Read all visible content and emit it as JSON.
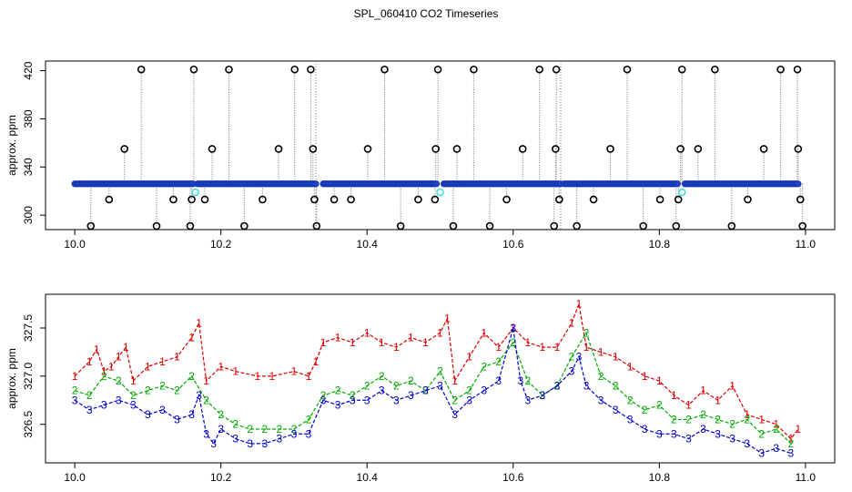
{
  "page": {
    "title": "SPL_060410  CO2 Timeseries"
  },
  "colors": {
    "series1": "#dd0000",
    "series2": "#00aa00",
    "series3": "#0000cc",
    "cyan": "#44dddd",
    "point_fill": "#2244cc",
    "outlier": "#000000",
    "vline": "#777777"
  },
  "chart_data": [
    {
      "type": "scatter",
      "title": "SPL_060410  CO2 Timeseries",
      "xlabel": "",
      "ylabel": "approx. ppm",
      "xlim": [
        9.96,
        11.04
      ],
      "ylim": [
        288,
        428
      ],
      "xticks": [
        10.0,
        10.2,
        10.4,
        10.6,
        10.8,
        11.0
      ],
      "yticks": [
        300,
        340,
        380,
        420
      ],
      "grid": false,
      "gap_x": [
        10.33,
        10.665
      ],
      "baseline_segments": [
        {
          "x_start": 10.0,
          "x_end": 10.162,
          "y": 326
        },
        {
          "x_start": 10.168,
          "x_end": 10.33,
          "y": 326
        },
        {
          "x_start": 10.34,
          "x_end": 10.495,
          "y": 326
        },
        {
          "x_start": 10.505,
          "x_end": 10.665,
          "y": 326
        },
        {
          "x_start": 10.67,
          "x_end": 10.825,
          "y": 326
        },
        {
          "x_start": 10.835,
          "x_end": 10.99,
          "y": 326
        }
      ],
      "outliers": [
        {
          "x": 10.022,
          "y": 291
        },
        {
          "x": 10.047,
          "y": 313
        },
        {
          "x": 10.068,
          "y": 355
        },
        {
          "x": 10.091,
          "y": 421
        },
        {
          "x": 10.112,
          "y": 291
        },
        {
          "x": 10.135,
          "y": 313
        },
        {
          "x": 10.158,
          "y": 291
        },
        {
          "x": 10.16,
          "y": 313
        },
        {
          "x": 10.163,
          "y": 421
        },
        {
          "x": 10.178,
          "y": 313
        },
        {
          "x": 10.188,
          "y": 355
        },
        {
          "x": 10.211,
          "y": 421
        },
        {
          "x": 10.232,
          "y": 291
        },
        {
          "x": 10.257,
          "y": 313
        },
        {
          "x": 10.279,
          "y": 355
        },
        {
          "x": 10.301,
          "y": 421
        },
        {
          "x": 10.323,
          "y": 421
        },
        {
          "x": 10.326,
          "y": 355
        },
        {
          "x": 10.328,
          "y": 313
        },
        {
          "x": 10.331,
          "y": 291
        },
        {
          "x": 10.355,
          "y": 313
        },
        {
          "x": 10.378,
          "y": 313
        },
        {
          "x": 10.401,
          "y": 355
        },
        {
          "x": 10.424,
          "y": 421
        },
        {
          "x": 10.446,
          "y": 291
        },
        {
          "x": 10.47,
          "y": 313
        },
        {
          "x": 10.493,
          "y": 313
        },
        {
          "x": 10.494,
          "y": 355
        },
        {
          "x": 10.497,
          "y": 421
        },
        {
          "x": 10.518,
          "y": 291
        },
        {
          "x": 10.523,
          "y": 355
        },
        {
          "x": 10.546,
          "y": 421
        },
        {
          "x": 10.568,
          "y": 291
        },
        {
          "x": 10.591,
          "y": 313
        },
        {
          "x": 10.613,
          "y": 355
        },
        {
          "x": 10.636,
          "y": 421
        },
        {
          "x": 10.656,
          "y": 291
        },
        {
          "x": 10.658,
          "y": 355
        },
        {
          "x": 10.659,
          "y": 421
        },
        {
          "x": 10.663,
          "y": 313
        },
        {
          "x": 10.687,
          "y": 291
        },
        {
          "x": 10.71,
          "y": 313
        },
        {
          "x": 10.733,
          "y": 355
        },
        {
          "x": 10.756,
          "y": 421
        },
        {
          "x": 10.778,
          "y": 291
        },
        {
          "x": 10.801,
          "y": 313
        },
        {
          "x": 10.823,
          "y": 291
        },
        {
          "x": 10.826,
          "y": 313
        },
        {
          "x": 10.829,
          "y": 355
        },
        {
          "x": 10.831,
          "y": 421
        },
        {
          "x": 10.853,
          "y": 355
        },
        {
          "x": 10.876,
          "y": 421
        },
        {
          "x": 10.899,
          "y": 291
        },
        {
          "x": 10.921,
          "y": 313
        },
        {
          "x": 10.943,
          "y": 355
        },
        {
          "x": 10.966,
          "y": 421
        },
        {
          "x": 10.989,
          "y": 421
        },
        {
          "x": 10.99,
          "y": 355
        },
        {
          "x": 10.993,
          "y": 313
        },
        {
          "x": 10.996,
          "y": 291
        }
      ],
      "cyan_points": [
        {
          "x": 10.165,
          "y": 319
        },
        {
          "x": 10.5,
          "y": 319
        },
        {
          "x": 10.831,
          "y": 319
        }
      ]
    },
    {
      "type": "line",
      "title": "",
      "xlabel": "",
      "ylabel": "approx. ppm",
      "xlim": [
        9.96,
        11.04
      ],
      "ylim": [
        326.1,
        327.85
      ],
      "xticks": [
        10.0,
        10.2,
        10.4,
        10.6,
        10.8,
        11.0
      ],
      "yticks": [
        326.5,
        327.0,
        327.5
      ],
      "grid": false,
      "series": [
        {
          "name": "1",
          "x": [
            10.0,
            10.02,
            10.03,
            10.04,
            10.05,
            10.06,
            10.07,
            10.08,
            10.1,
            10.12,
            10.14,
            10.16,
            10.17,
            10.18,
            10.2,
            10.22,
            10.25,
            10.27,
            10.3,
            10.32,
            10.33,
            10.34,
            10.36,
            10.38,
            10.4,
            10.42,
            10.44,
            10.46,
            10.48,
            10.5,
            10.51,
            10.52,
            10.54,
            10.56,
            10.58,
            10.6,
            10.62,
            10.64,
            10.66,
            10.68,
            10.69,
            10.7,
            10.72,
            10.74,
            10.76,
            10.78,
            10.8,
            10.82,
            10.84,
            10.86,
            10.88,
            10.9,
            10.92,
            10.94,
            10.96,
            10.98,
            10.99
          ],
          "y": [
            327.0,
            327.15,
            327.28,
            327.05,
            327.1,
            327.2,
            327.3,
            326.95,
            327.1,
            327.15,
            327.2,
            327.4,
            327.55,
            326.95,
            327.1,
            327.05,
            327.0,
            327.0,
            327.05,
            327.0,
            327.15,
            327.35,
            327.4,
            327.35,
            327.45,
            327.35,
            327.3,
            327.4,
            327.35,
            327.45,
            327.6,
            326.95,
            327.2,
            327.45,
            327.3,
            327.5,
            327.35,
            327.3,
            327.3,
            327.55,
            327.75,
            327.3,
            327.25,
            327.2,
            327.1,
            327.0,
            326.95,
            326.8,
            326.7,
            326.85,
            326.75,
            326.9,
            326.6,
            326.55,
            326.5,
            326.35,
            326.45
          ]
        },
        {
          "name": "2",
          "x": [
            10.0,
            10.02,
            10.04,
            10.06,
            10.08,
            10.1,
            10.12,
            10.14,
            10.16,
            10.18,
            10.2,
            10.22,
            10.24,
            10.26,
            10.28,
            10.3,
            10.32,
            10.34,
            10.36,
            10.38,
            10.4,
            10.42,
            10.44,
            10.46,
            10.48,
            10.5,
            10.52,
            10.54,
            10.56,
            10.58,
            10.6,
            10.62,
            10.64,
            10.66,
            10.68,
            10.7,
            10.72,
            10.74,
            10.76,
            10.78,
            10.8,
            10.82,
            10.84,
            10.86,
            10.88,
            10.9,
            10.92,
            10.94,
            10.96,
            10.98
          ],
          "y": [
            326.85,
            326.8,
            327.0,
            326.95,
            326.8,
            326.85,
            326.9,
            326.85,
            327.0,
            326.75,
            326.6,
            326.5,
            326.45,
            326.45,
            326.45,
            326.45,
            326.55,
            326.8,
            326.85,
            326.8,
            326.9,
            327.0,
            326.9,
            326.95,
            326.85,
            327.05,
            326.75,
            326.85,
            327.1,
            327.15,
            327.35,
            326.95,
            326.8,
            326.9,
            327.2,
            327.45,
            327.0,
            326.9,
            326.75,
            326.65,
            326.7,
            326.55,
            326.55,
            326.6,
            326.55,
            326.5,
            326.55,
            326.4,
            326.45,
            326.3
          ]
        },
        {
          "name": "3",
          "x": [
            10.0,
            10.02,
            10.04,
            10.06,
            10.08,
            10.1,
            10.12,
            10.14,
            10.16,
            10.17,
            10.18,
            10.19,
            10.2,
            10.22,
            10.24,
            10.26,
            10.28,
            10.3,
            10.32,
            10.34,
            10.36,
            10.38,
            10.4,
            10.42,
            10.44,
            10.46,
            10.48,
            10.5,
            10.52,
            10.54,
            10.56,
            10.58,
            10.6,
            10.61,
            10.62,
            10.64,
            10.66,
            10.68,
            10.69,
            10.7,
            10.72,
            10.74,
            10.76,
            10.78,
            10.8,
            10.82,
            10.84,
            10.86,
            10.88,
            10.9,
            10.92,
            10.94,
            10.96,
            10.98
          ],
          "y": [
            326.75,
            326.65,
            326.7,
            326.75,
            326.7,
            326.6,
            326.65,
            326.55,
            326.6,
            326.8,
            326.4,
            326.3,
            326.45,
            326.35,
            326.3,
            326.3,
            326.35,
            326.4,
            326.4,
            326.75,
            326.7,
            326.75,
            326.75,
            326.85,
            326.75,
            326.8,
            326.85,
            326.9,
            326.6,
            326.75,
            326.85,
            326.95,
            327.5,
            326.95,
            326.75,
            326.8,
            326.9,
            327.05,
            327.2,
            326.9,
            326.75,
            326.65,
            326.55,
            326.45,
            326.4,
            326.4,
            326.35,
            326.45,
            326.4,
            326.35,
            326.3,
            326.2,
            326.25,
            326.2
          ]
        }
      ]
    }
  ]
}
